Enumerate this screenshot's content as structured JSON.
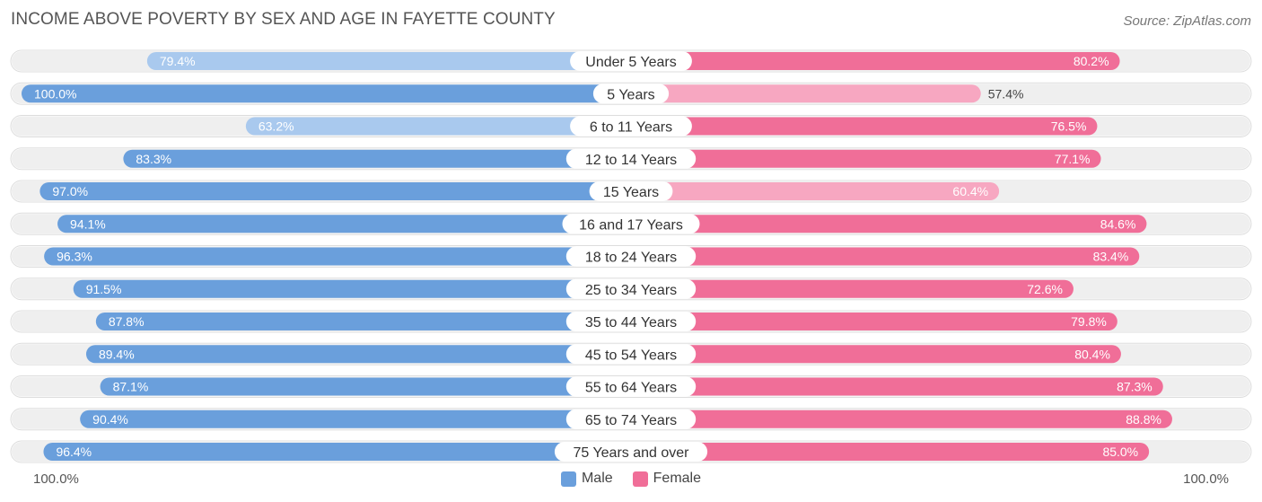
{
  "title": "INCOME ABOVE POVERTY BY SEX AND AGE IN FAYETTE COUNTY",
  "source": "Source: ZipAtlas.com",
  "axis": {
    "left_label": "100.0%",
    "right_label": "100.0%"
  },
  "legend": [
    {
      "label": "Male",
      "color": "#6a9fdc"
    },
    {
      "label": "Female",
      "color": "#f06e98"
    }
  ],
  "colors": {
    "male_strong": "#6a9fdc",
    "male_light": "#a9c9ee",
    "female_strong": "#f06e98",
    "female_light": "#f7a7c1",
    "track": "#efefef"
  },
  "chart_data": {
    "type": "bar",
    "orientation": "horizontal-diverging",
    "title": "INCOME ABOVE POVERTY BY SEX AND AGE IN FAYETTE COUNTY",
    "xlim": [
      0,
      100
    ],
    "categories": [
      "Under 5 Years",
      "5 Years",
      "6 to 11 Years",
      "12 to 14 Years",
      "15 Years",
      "16 and 17 Years",
      "18 to 24 Years",
      "25 to 34 Years",
      "35 to 44 Years",
      "45 to 54 Years",
      "55 to 64 Years",
      "65 to 74 Years",
      "75 Years and over"
    ],
    "series": [
      {
        "name": "Male",
        "values": [
          79.4,
          100.0,
          63.2,
          83.3,
          97.0,
          94.1,
          96.3,
          91.5,
          87.8,
          89.4,
          87.1,
          90.4,
          96.4
        ],
        "labels": [
          "79.4%",
          "100.0%",
          "63.2%",
          "83.3%",
          "97.0%",
          "94.1%",
          "96.3%",
          "91.5%",
          "87.8%",
          "89.4%",
          "87.1%",
          "90.4%",
          "96.4%"
        ]
      },
      {
        "name": "Female",
        "values": [
          80.2,
          57.4,
          76.5,
          77.1,
          60.4,
          84.6,
          83.4,
          72.6,
          79.8,
          80.4,
          87.3,
          88.8,
          85.0
        ],
        "labels": [
          "80.2%",
          "57.4%",
          "76.5%",
          "77.1%",
          "60.4%",
          "84.6%",
          "83.4%",
          "72.6%",
          "79.8%",
          "80.4%",
          "87.3%",
          "88.8%",
          "85.0%"
        ]
      }
    ]
  }
}
